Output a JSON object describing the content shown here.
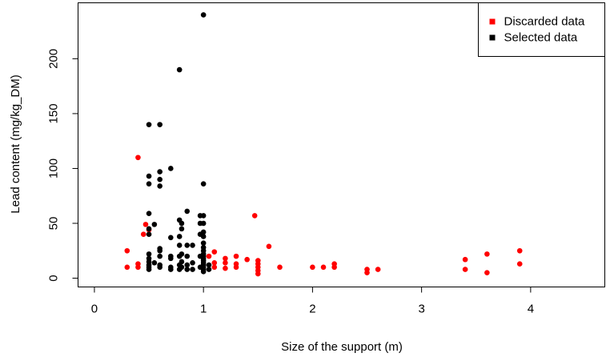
{
  "chart_data": {
    "type": "scatter",
    "x_label": "Size of the support (m)",
    "y_label": "Lead content (mg/kg_DM)",
    "xlim": [
      -0.15,
      4.68
    ],
    "ylim": [
      -8,
      251
    ],
    "xticks": [
      0,
      1,
      2,
      3,
      4
    ],
    "yticks": [
      0,
      50,
      100,
      150,
      200
    ],
    "legend": "topright",
    "series": [
      {
        "name": "Discarded data",
        "color": "#ff0000",
        "x": [
          0.3,
          0.3,
          0.4,
          0.4,
          0.4,
          0.45,
          0.47,
          0.5,
          1.05,
          1.1,
          1.1,
          1.1,
          1.2,
          1.2,
          1.2,
          1.3,
          1.3,
          1.3,
          1.4,
          1.47,
          1.5,
          1.5,
          1.5,
          1.5,
          1.5,
          1.6,
          1.7,
          2.0,
          2.1,
          2.2,
          2.2,
          2.5,
          2.5,
          2.6,
          3.4,
          3.4,
          3.6,
          3.6,
          3.9,
          3.9
        ],
        "values": [
          25,
          10,
          110,
          13,
          10,
          40,
          49,
          44,
          20,
          24,
          14,
          10,
          18,
          14,
          9,
          20,
          13,
          10,
          17,
          57,
          16,
          13,
          10,
          7,
          4,
          29,
          10,
          10,
          10,
          13,
          10,
          8,
          5,
          8,
          17,
          8,
          22,
          5,
          25,
          13
        ]
      },
      {
        "name": "Selected data",
        "color": "#000000",
        "x": [
          0.5,
          0.5,
          0.5,
          0.5,
          0.5,
          0.5,
          0.5,
          0.5,
          0.5,
          0.5,
          0.5,
          0.5,
          0.55,
          0.55,
          0.6,
          0.6,
          0.6,
          0.6,
          0.6,
          0.6,
          0.6,
          0.6,
          0.6,
          0.7,
          0.7,
          0.7,
          0.7,
          0.7,
          0.7,
          0.78,
          0.78,
          0.78,
          0.78,
          0.78,
          0.78,
          0.78,
          0.8,
          0.8,
          0.8,
          0.8,
          0.8,
          0.85,
          0.85,
          0.85,
          0.85,
          0.85,
          0.9,
          0.9,
          0.9,
          0.97,
          0.97,
          0.97,
          0.97,
          0.97,
          1.0,
          1.0,
          1.0,
          1.0,
          1.0,
          1.0,
          1.0,
          1.0,
          1.0,
          1.0,
          1.0,
          1.0,
          1.0,
          1.0,
          1.0,
          1.0,
          1.0,
          1.0,
          1.05,
          1.05
        ],
        "values": [
          140,
          93,
          86,
          59,
          45,
          40,
          22,
          18,
          15,
          12,
          10,
          8,
          49,
          14,
          140,
          97,
          90,
          84,
          27,
          25,
          20,
          12,
          10,
          100,
          37,
          20,
          18,
          10,
          8,
          190,
          53,
          38,
          30,
          20,
          12,
          8,
          50,
          45,
          22,
          15,
          10,
          61,
          30,
          20,
          12,
          8,
          30,
          14,
          8,
          57,
          50,
          40,
          20,
          10,
          240,
          86,
          57,
          50,
          42,
          38,
          32,
          28,
          25,
          22,
          20,
          18,
          16,
          14,
          12,
          10,
          8,
          6,
          12,
          8
        ]
      }
    ]
  }
}
